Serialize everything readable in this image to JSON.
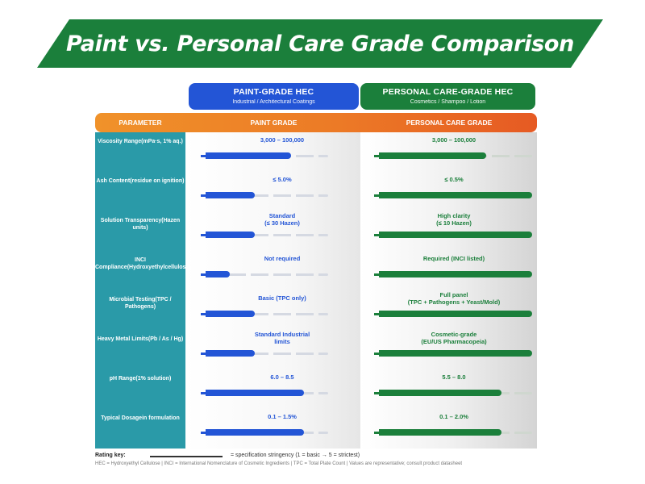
{
  "title": "Paint vs. Personal Care Grade Comparison",
  "colors": {
    "title_bg": "#1b7f3b",
    "paint": "#2355d6",
    "personal_care": "#1b7f3b",
    "parameter_bg": "#2a9aa8",
    "header_orange": "#ec7a26"
  },
  "groups": {
    "paint": {
      "title": "PAINT-GRADE HEC",
      "subtitle": "Industrial / Architectural Coatings"
    },
    "personal_care": {
      "title": "PERSONAL CARE-GRADE HEC",
      "subtitle": "Cosmetics / Shampoo / Lotion"
    }
  },
  "header": {
    "parameter": "PARAMETER",
    "paint": "PAINT GRADE",
    "personal_care": "PERSONAL CARE GRADE"
  },
  "rows": [
    {
      "param": [
        "Viscosity Range",
        "(mPa·s, 1% aq.)"
      ],
      "paint": [
        "3,000 – 100,000"
      ],
      "paint_rating": 3.5,
      "pc": [
        "3,000 – 100,000"
      ],
      "pc_rating": 3.5
    },
    {
      "param": [
        "Ash Content",
        "(residue on ignition)"
      ],
      "paint": [
        "≤ 5.0%"
      ],
      "paint_rating": 2,
      "pc": [
        "≤ 0.5%"
      ],
      "pc_rating": 5
    },
    {
      "param": [
        "Solution Transparency",
        "(Hazen units)"
      ],
      "paint": [
        "Standard",
        "(≤ 30 Hazen)"
      ],
      "paint_rating": 2,
      "pc": [
        "High clarity",
        "(≤ 10 Hazen)"
      ],
      "pc_rating": 5
    },
    {
      "param": [
        "INCI Compliance",
        "(Hydroxyethylcellulose)"
      ],
      "paint": [
        "Not required"
      ],
      "paint_rating": 1,
      "pc": [
        "Required (INCI listed)"
      ],
      "pc_rating": 5
    },
    {
      "param": [
        "Microbial Testing",
        "(TPC / Pathogens)"
      ],
      "paint": [
        "Basic (TPC only)"
      ],
      "paint_rating": 2,
      "pc": [
        "Full panel",
        "(TPC + Pathogens + Yeast/Mold)"
      ],
      "pc_rating": 5
    },
    {
      "param": [
        "Heavy Metal Limits",
        "(Pb / As / Hg)"
      ],
      "paint": [
        "Standard Industrial",
        "limits"
      ],
      "paint_rating": 2,
      "pc": [
        "Cosmetic-grade",
        "(EU/US Pharmacopeia)"
      ],
      "pc_rating": 5
    },
    {
      "param": [
        "pH Range",
        "(1% solution)"
      ],
      "paint": [
        "6.0 – 8.5"
      ],
      "paint_rating": 4,
      "pc": [
        "5.5 – 8.0"
      ],
      "pc_rating": 4
    },
    {
      "param": [
        "Typical Dosage",
        "in formulation"
      ],
      "paint": [
        "0.1 – 1.5%"
      ],
      "paint_rating": 4,
      "pc": [
        "0.1 – 2.0%"
      ],
      "pc_rating": 4
    }
  ],
  "rating_key": {
    "label": "Rating key:",
    "text": "= specification stringency (1 = basic  →  5 = strictest)"
  },
  "footnote": "HEC = Hydroxyethyl Cellulose  |  INCI = International Nomenclature of Cosmetic Ingredients  |  TPC = Total Plate Count  |  Values are representative; consult product datasheet"
}
